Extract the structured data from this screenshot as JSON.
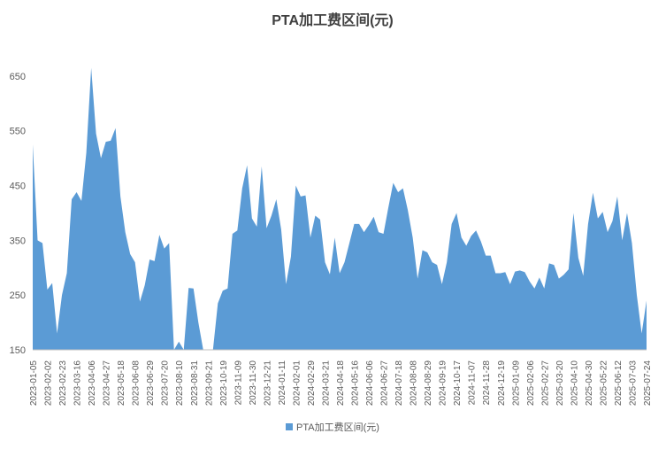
{
  "chart_data": {
    "type": "area",
    "title": "PTA加工费区间(元)",
    "categories": [
      "2023-01-05",
      null,
      null,
      "2023-02-02",
      null,
      null,
      "2023-02-23",
      null,
      null,
      "2023-03-16",
      null,
      null,
      "2023-04-06",
      null,
      null,
      "2023-04-27",
      null,
      null,
      "2023-05-18",
      null,
      null,
      "2023-06-08",
      null,
      null,
      "2023-06-29",
      null,
      null,
      "2023-07-20",
      null,
      null,
      "2023-08-10",
      null,
      null,
      "2023-08-31",
      null,
      null,
      "2023-09-21",
      null,
      null,
      "2023-10-19",
      null,
      null,
      "2023-11-09",
      null,
      null,
      "2023-11-30",
      null,
      null,
      "2023-12-21",
      null,
      null,
      "2024-01-11",
      null,
      null,
      "2024-02-01",
      null,
      null,
      "2024-02-29",
      null,
      null,
      "2024-03-21",
      null,
      null,
      "2024-04-18",
      null,
      null,
      "2024-05-16",
      null,
      null,
      "2024-06-06",
      null,
      null,
      "2024-06-27",
      null,
      null,
      "2024-07-18",
      null,
      null,
      "2024-08-08",
      null,
      null,
      "2024-08-29",
      null,
      null,
      "2024-09-19",
      null,
      null,
      "2024-10-17",
      null,
      null,
      "2024-11-07",
      null,
      null,
      "2024-11-28",
      null,
      null,
      "2024-12-19",
      null,
      null,
      "2025-01-09",
      null,
      null,
      "2025-02-06",
      null,
      null,
      "2025-02-27",
      null,
      null,
      "2025-03-20",
      null,
      null,
      "2025-04-10",
      null,
      null,
      "2025-04-30",
      null,
      null,
      "2025-05-22",
      null,
      null,
      "2025-06-12",
      null,
      null,
      "2025-07-03",
      null,
      null,
      "2025-07-24"
    ],
    "series": [
      {
        "name": "PTA加工费区间(元)",
        "color": "#5b9bd5",
        "values": [
          525,
          350,
          345,
          260,
          272,
          180,
          250,
          290,
          425,
          438,
          422,
          510,
          665,
          545,
          500,
          530,
          532,
          555,
          430,
          365,
          325,
          310,
          238,
          268,
          315,
          312,
          360,
          335,
          345,
          150,
          165,
          150,
          263,
          262,
          200,
          150,
          150,
          150,
          235,
          258,
          262,
          362,
          368,
          445,
          487,
          390,
          375,
          485,
          372,
          395,
          425,
          370,
          270,
          320,
          450,
          430,
          432,
          355,
          395,
          388,
          310,
          288,
          355,
          290,
          310,
          345,
          380,
          380,
          365,
          378,
          393,
          365,
          362,
          410,
          455,
          438,
          445,
          405,
          355,
          280,
          332,
          328,
          310,
          305,
          270,
          310,
          380,
          400,
          355,
          340,
          358,
          368,
          348,
          322,
          322,
          290,
          290,
          292,
          270,
          293,
          295,
          292,
          275,
          262,
          282,
          262,
          308,
          305,
          280,
          287,
          297,
          400,
          318,
          285,
          380,
          437,
          390,
          402,
          365,
          385,
          430,
          350,
          400,
          345,
          250,
          180,
          240
        ]
      }
    ],
    "ylim": [
      150,
      700
    ],
    "yticks": [
      150,
      250,
      350,
      450,
      550,
      650
    ],
    "grid": false,
    "legend": "bottom"
  }
}
